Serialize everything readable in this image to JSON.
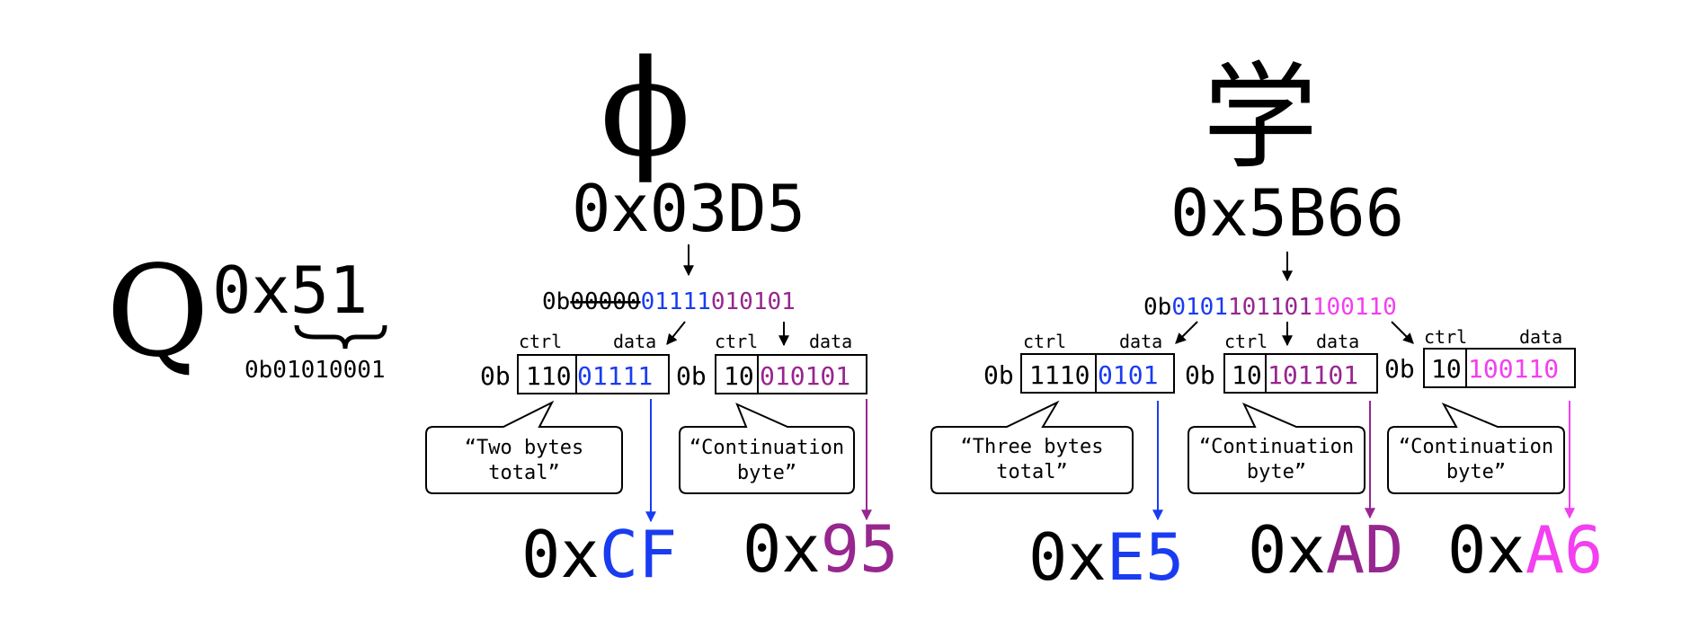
{
  "colors": {
    "blue": "#1a3cf0",
    "purple": "#97268f",
    "pink": "#f23ff0",
    "black": "#000000"
  },
  "q": {
    "glyph": "Q",
    "code": "0x51",
    "code_prefix": "0x",
    "code_digits": "51",
    "binary": "0b01010001"
  },
  "phi": {
    "glyph": "ϕ",
    "code": "0x03D5",
    "bits": {
      "prefix": "0b",
      "struck": "00000",
      "blue": "01111",
      "purple": "010101"
    },
    "bytes": [
      {
        "label_ctrl": "ctrl",
        "label_data": "data",
        "prefix": "0b",
        "ctrl": "110",
        "data": "01111",
        "note_line1": "“Two bytes",
        "note_line2": "total”",
        "hex_prefix": "0x",
        "hex_value": "CF",
        "color": "#1a3cf0"
      },
      {
        "label_ctrl": "ctrl",
        "label_data": "data",
        "prefix": "0b",
        "ctrl": "10",
        "data": "010101",
        "note_line1": "“Continuation",
        "note_line2": "byte”",
        "hex_prefix": "0x",
        "hex_value": "95",
        "color": "#97268f"
      }
    ]
  },
  "xue": {
    "glyph": "学",
    "code": "0x5B66",
    "bits": {
      "prefix": "0b",
      "blue": "0101",
      "purple": "101101",
      "pink": "100110"
    },
    "bytes": [
      {
        "label_ctrl": "ctrl",
        "label_data": "data",
        "prefix": "0b",
        "ctrl": "1110",
        "data": "0101",
        "note_line1": "“Three bytes",
        "note_line2": "total”",
        "hex_prefix": "0x",
        "hex_value": "E5",
        "color": "#1a3cf0"
      },
      {
        "label_ctrl": "ctrl",
        "label_data": "data",
        "prefix": "0b",
        "ctrl": "10",
        "data": "101101",
        "note_line1": "“Continuation",
        "note_line2": "byte”",
        "hex_prefix": "0x",
        "hex_value": "AD",
        "color": "#97268f"
      },
      {
        "label_ctrl": "ctrl",
        "label_data": "data",
        "prefix": "0b",
        "ctrl": "10",
        "data": "100110",
        "note_line1": "“Continuation",
        "note_line2": "byte”",
        "hex_prefix": "0x",
        "hex_value": "A6",
        "color": "#f23ff0"
      }
    ]
  }
}
